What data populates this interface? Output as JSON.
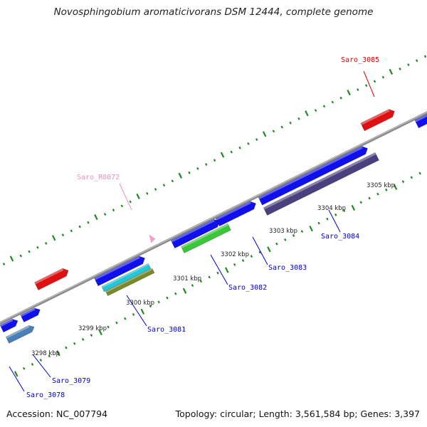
{
  "title": "Novosphingobium aromaticivorans DSM 12444, complete genome",
  "accession": "Accession: NC_007794",
  "summary": "Topology: circular; Length: 3,561,584 bp; Genes: 3,397",
  "colors": {
    "backbone": "#8a8a8a",
    "tick": "#1f8a1f",
    "label_blue": "#0000cc",
    "label_red": "#dd0000",
    "label_pink": "#f090c0"
  },
  "scale_labels": [
    "3298 kbp",
    "3299 kbp",
    "3300 kbp",
    "3301 kbp",
    "3302 kbp",
    "3303 kbp",
    "3304 kbp",
    "3305 kbp"
  ],
  "genes": [
    {
      "name": "Saro_3078"
    },
    {
      "name": "Saro_3079"
    },
    {
      "name": "Saro_3081"
    },
    {
      "name": "Saro_3082"
    },
    {
      "name": "Saro_3083"
    },
    {
      "name": "Saro_3084"
    },
    {
      "name": "Saro_3085"
    },
    {
      "name": "Saro_R0072"
    }
  ]
}
